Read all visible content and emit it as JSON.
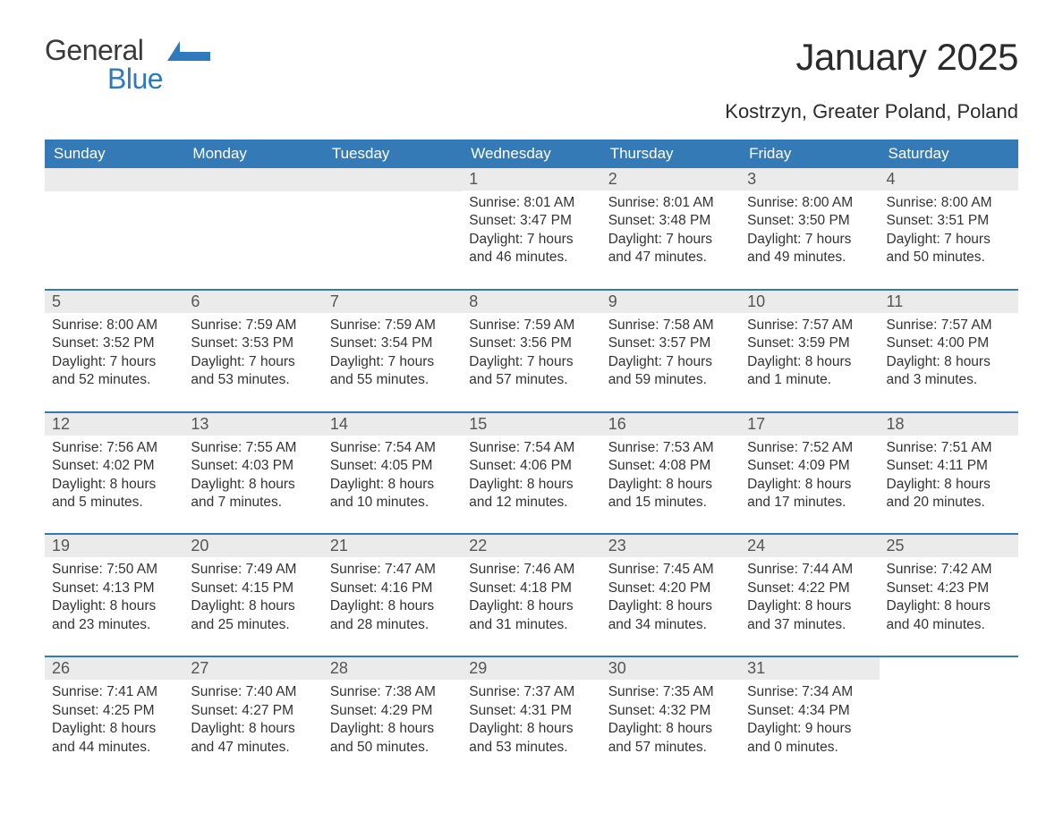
{
  "logo": {
    "word1": "General",
    "word2": "Blue",
    "shape_color": "#2f79bd",
    "text1_color": "#3a3a3a",
    "text2_color": "#2f79bd"
  },
  "title": "January 2025",
  "subtitle": "Kostrzyn, Greater Poland, Poland",
  "colors": {
    "header_bg": "#347ab7",
    "header_text": "#ffffff",
    "daynum_bg": "#ebebeb",
    "daynum_text": "#555555",
    "body_text": "#333333",
    "page_bg": "#ffffff",
    "week_sep": "#347ab7"
  },
  "typography": {
    "title_fontsize": 42,
    "subtitle_fontsize": 22,
    "dayhead_fontsize": 17,
    "daynum_fontsize": 18,
    "body_fontsize": 15.5
  },
  "day_headers": [
    "Sunday",
    "Monday",
    "Tuesday",
    "Wednesday",
    "Thursday",
    "Friday",
    "Saturday"
  ],
  "weeks": [
    [
      {
        "empty": true
      },
      {
        "empty": true
      },
      {
        "empty": true
      },
      {
        "num": "1",
        "sunrise": "Sunrise: 8:01 AM",
        "sunset": "Sunset: 3:47 PM",
        "day1": "Daylight: 7 hours",
        "day2": "and 46 minutes."
      },
      {
        "num": "2",
        "sunrise": "Sunrise: 8:01 AM",
        "sunset": "Sunset: 3:48 PM",
        "day1": "Daylight: 7 hours",
        "day2": "and 47 minutes."
      },
      {
        "num": "3",
        "sunrise": "Sunrise: 8:00 AM",
        "sunset": "Sunset: 3:50 PM",
        "day1": "Daylight: 7 hours",
        "day2": "and 49 minutes."
      },
      {
        "num": "4",
        "sunrise": "Sunrise: 8:00 AM",
        "sunset": "Sunset: 3:51 PM",
        "day1": "Daylight: 7 hours",
        "day2": "and 50 minutes."
      }
    ],
    [
      {
        "num": "5",
        "sunrise": "Sunrise: 8:00 AM",
        "sunset": "Sunset: 3:52 PM",
        "day1": "Daylight: 7 hours",
        "day2": "and 52 minutes."
      },
      {
        "num": "6",
        "sunrise": "Sunrise: 7:59 AM",
        "sunset": "Sunset: 3:53 PM",
        "day1": "Daylight: 7 hours",
        "day2": "and 53 minutes."
      },
      {
        "num": "7",
        "sunrise": "Sunrise: 7:59 AM",
        "sunset": "Sunset: 3:54 PM",
        "day1": "Daylight: 7 hours",
        "day2": "and 55 minutes."
      },
      {
        "num": "8",
        "sunrise": "Sunrise: 7:59 AM",
        "sunset": "Sunset: 3:56 PM",
        "day1": "Daylight: 7 hours",
        "day2": "and 57 minutes."
      },
      {
        "num": "9",
        "sunrise": "Sunrise: 7:58 AM",
        "sunset": "Sunset: 3:57 PM",
        "day1": "Daylight: 7 hours",
        "day2": "and 59 minutes."
      },
      {
        "num": "10",
        "sunrise": "Sunrise: 7:57 AM",
        "sunset": "Sunset: 3:59 PM",
        "day1": "Daylight: 8 hours",
        "day2": "and 1 minute."
      },
      {
        "num": "11",
        "sunrise": "Sunrise: 7:57 AM",
        "sunset": "Sunset: 4:00 PM",
        "day1": "Daylight: 8 hours",
        "day2": "and 3 minutes."
      }
    ],
    [
      {
        "num": "12",
        "sunrise": "Sunrise: 7:56 AM",
        "sunset": "Sunset: 4:02 PM",
        "day1": "Daylight: 8 hours",
        "day2": "and 5 minutes."
      },
      {
        "num": "13",
        "sunrise": "Sunrise: 7:55 AM",
        "sunset": "Sunset: 4:03 PM",
        "day1": "Daylight: 8 hours",
        "day2": "and 7 minutes."
      },
      {
        "num": "14",
        "sunrise": "Sunrise: 7:54 AM",
        "sunset": "Sunset: 4:05 PM",
        "day1": "Daylight: 8 hours",
        "day2": "and 10 minutes."
      },
      {
        "num": "15",
        "sunrise": "Sunrise: 7:54 AM",
        "sunset": "Sunset: 4:06 PM",
        "day1": "Daylight: 8 hours",
        "day2": "and 12 minutes."
      },
      {
        "num": "16",
        "sunrise": "Sunrise: 7:53 AM",
        "sunset": "Sunset: 4:08 PM",
        "day1": "Daylight: 8 hours",
        "day2": "and 15 minutes."
      },
      {
        "num": "17",
        "sunrise": "Sunrise: 7:52 AM",
        "sunset": "Sunset: 4:09 PM",
        "day1": "Daylight: 8 hours",
        "day2": "and 17 minutes."
      },
      {
        "num": "18",
        "sunrise": "Sunrise: 7:51 AM",
        "sunset": "Sunset: 4:11 PM",
        "day1": "Daylight: 8 hours",
        "day2": "and 20 minutes."
      }
    ],
    [
      {
        "num": "19",
        "sunrise": "Sunrise: 7:50 AM",
        "sunset": "Sunset: 4:13 PM",
        "day1": "Daylight: 8 hours",
        "day2": "and 23 minutes."
      },
      {
        "num": "20",
        "sunrise": "Sunrise: 7:49 AM",
        "sunset": "Sunset: 4:15 PM",
        "day1": "Daylight: 8 hours",
        "day2": "and 25 minutes."
      },
      {
        "num": "21",
        "sunrise": "Sunrise: 7:47 AM",
        "sunset": "Sunset: 4:16 PM",
        "day1": "Daylight: 8 hours",
        "day2": "and 28 minutes."
      },
      {
        "num": "22",
        "sunrise": "Sunrise: 7:46 AM",
        "sunset": "Sunset: 4:18 PM",
        "day1": "Daylight: 8 hours",
        "day2": "and 31 minutes."
      },
      {
        "num": "23",
        "sunrise": "Sunrise: 7:45 AM",
        "sunset": "Sunset: 4:20 PM",
        "day1": "Daylight: 8 hours",
        "day2": "and 34 minutes."
      },
      {
        "num": "24",
        "sunrise": "Sunrise: 7:44 AM",
        "sunset": "Sunset: 4:22 PM",
        "day1": "Daylight: 8 hours",
        "day2": "and 37 minutes."
      },
      {
        "num": "25",
        "sunrise": "Sunrise: 7:42 AM",
        "sunset": "Sunset: 4:23 PM",
        "day1": "Daylight: 8 hours",
        "day2": "and 40 minutes."
      }
    ],
    [
      {
        "num": "26",
        "sunrise": "Sunrise: 7:41 AM",
        "sunset": "Sunset: 4:25 PM",
        "day1": "Daylight: 8 hours",
        "day2": "and 44 minutes."
      },
      {
        "num": "27",
        "sunrise": "Sunrise: 7:40 AM",
        "sunset": "Sunset: 4:27 PM",
        "day1": "Daylight: 8 hours",
        "day2": "and 47 minutes."
      },
      {
        "num": "28",
        "sunrise": "Sunrise: 7:38 AM",
        "sunset": "Sunset: 4:29 PM",
        "day1": "Daylight: 8 hours",
        "day2": "and 50 minutes."
      },
      {
        "num": "29",
        "sunrise": "Sunrise: 7:37 AM",
        "sunset": "Sunset: 4:31 PM",
        "day1": "Daylight: 8 hours",
        "day2": "and 53 minutes."
      },
      {
        "num": "30",
        "sunrise": "Sunrise: 7:35 AM",
        "sunset": "Sunset: 4:32 PM",
        "day1": "Daylight: 8 hours",
        "day2": "and 57 minutes."
      },
      {
        "num": "31",
        "sunrise": "Sunrise: 7:34 AM",
        "sunset": "Sunset: 4:34 PM",
        "day1": "Daylight: 9 hours",
        "day2": "and 0 minutes."
      },
      {
        "empty": true,
        "nostrip": true
      }
    ]
  ]
}
